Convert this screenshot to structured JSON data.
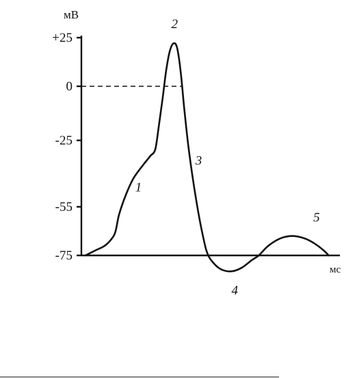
{
  "chart_data": {
    "type": "line",
    "title": "",
    "ylabel": "мВ",
    "xlabel": "мс",
    "yticks": [
      {
        "value": 25,
        "label": "+25"
      },
      {
        "value": 0,
        "label": "0"
      },
      {
        "value": -25,
        "label": "-25"
      },
      {
        "value": -55,
        "label": "-55"
      },
      {
        "value": -75,
        "label": "-75"
      }
    ],
    "baseline": -75,
    "reference_line": {
      "value": 0,
      "style": "dashed"
    },
    "series": [
      {
        "values_ms_mv": [
          [
            0,
            -75
          ],
          [
            4,
            -73
          ],
          [
            8,
            -71
          ],
          [
            11,
            -68
          ],
          [
            12.5,
            -65
          ],
          [
            14,
            -58
          ],
          [
            17,
            -49
          ],
          [
            20,
            -42
          ],
          [
            24,
            -36
          ],
          [
            27,
            -32
          ],
          [
            29,
            -29
          ],
          [
            30.5,
            -18
          ],
          [
            32,
            -6
          ],
          [
            33.5,
            8
          ],
          [
            35,
            18
          ],
          [
            36.5,
            22
          ],
          [
            38,
            20
          ],
          [
            39.5,
            8
          ],
          [
            41,
            -10
          ],
          [
            43,
            -30
          ],
          [
            46,
            -52
          ],
          [
            49,
            -68
          ],
          [
            51,
            -75
          ],
          [
            54,
            -79
          ],
          [
            57,
            -81
          ],
          [
            61,
            -81.5
          ],
          [
            65,
            -80
          ],
          [
            69,
            -77
          ],
          [
            72,
            -75
          ],
          [
            76,
            -71
          ],
          [
            81,
            -68
          ],
          [
            86,
            -67
          ],
          [
            91,
            -68
          ],
          [
            95,
            -70
          ],
          [
            99,
            -73
          ],
          [
            101,
            -75
          ]
        ]
      }
    ],
    "phase_labels": [
      {
        "text": "1",
        "x": 22,
        "y": -48
      },
      {
        "text": "2",
        "x": 37,
        "y": 30
      },
      {
        "text": "3",
        "x": 47,
        "y": -36
      },
      {
        "text": "4",
        "x": 62,
        "y": -91
      },
      {
        "text": "5",
        "x": 96,
        "y": -61
      }
    ]
  }
}
